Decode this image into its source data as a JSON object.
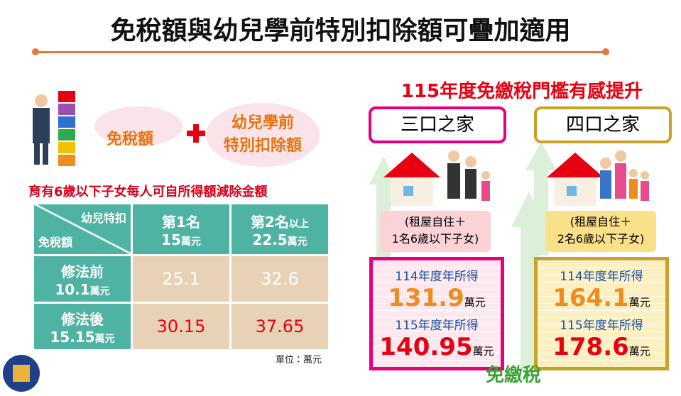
{
  "header": {
    "title": "免稅額與幼兒學前特別扣除額可疊加適用"
  },
  "left": {
    "tag1": "免稅額",
    "tag2": [
      "幼兒學前",
      "特別扣除額"
    ],
    "subtitle": "育有6歲以下子女每人可自所得額減除金額"
  },
  "table": {
    "corner_top": "幼兒特扣",
    "corner_bottom": "免稅額",
    "columns": [
      {
        "label": "第1名",
        "suffix": "",
        "amount": "15",
        "unit": "萬元"
      },
      {
        "label": "第2名",
        "suffix": "以上",
        "amount": "22.5",
        "unit": "萬元"
      }
    ],
    "rows": [
      {
        "label": "修法前",
        "amount": "10.1",
        "unit": "萬元",
        "cells": [
          "25.1",
          "32.6"
        ]
      },
      {
        "label": "修法後",
        "amount": "15.15",
        "unit": "萬元",
        "cells": [
          "30.15",
          "37.65"
        ]
      }
    ],
    "note": "單位：萬元"
  },
  "right": {
    "title": "115年度免繳稅門檻有感提升",
    "families": [
      {
        "name": "三口之家",
        "note": [
          "(租屋自住＋",
          "1名6歲以下子女)"
        ],
        "before_label": "114年度年所得",
        "before": "131.9",
        "before_unit": "萬元",
        "after_label": "115年度年所得",
        "after": "140.95",
        "after_unit": "萬元"
      },
      {
        "name": "四口之家",
        "note": [
          "(租屋自住＋",
          "2名6歲以下子女)"
        ],
        "before_label": "114年度年所得",
        "before": "164.1",
        "before_unit": "萬元",
        "after_label": "115年度年所得",
        "after": "178.6",
        "after_unit": "萬元"
      }
    ],
    "footer": "免繳稅"
  }
}
